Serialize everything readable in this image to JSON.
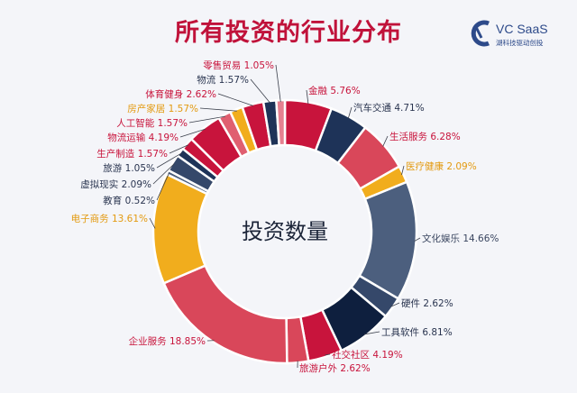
{
  "page": {
    "title": "所有投资的行业分布",
    "logo": {
      "name": "VC SaaS",
      "tagline": "湖科技驱动创投"
    }
  },
  "chart_data": {
    "type": "pie",
    "variant": "donut",
    "center_label": "投资数量",
    "slices": [
      {
        "label": "金融",
        "value": 5.76,
        "color": "#c8143c",
        "label_color": "#c8143c"
      },
      {
        "label": "汽车交通",
        "value": 4.71,
        "color": "#1e3358",
        "label_color": "#2a3550"
      },
      {
        "label": "生活服务",
        "value": 6.28,
        "color": "#d9475a",
        "label_color": "#c8143c"
      },
      {
        "label": "医疗健康",
        "value": 2.09,
        "color": "#f1ad1d",
        "label_color": "#e39a10"
      },
      {
        "label": "文化娱乐",
        "value": 14.66,
        "color": "#4c5f7e",
        "label_color": "#3a4660"
      },
      {
        "label": "硬件",
        "value": 2.62,
        "color": "#35486a",
        "label_color": "#2a3550"
      },
      {
        "label": "工具软件",
        "value": 6.81,
        "color": "#0e1f3e",
        "label_color": "#2a3550"
      },
      {
        "label": "社交社区",
        "value": 4.19,
        "color": "#c8143c",
        "label_color": "#c8143c"
      },
      {
        "label": "旅游户外",
        "value": 2.62,
        "color": "#d9475a",
        "label_color": "#c8143c"
      },
      {
        "label": "企业服务",
        "value": 18.85,
        "color": "#d9475a",
        "label_color": "#c8143c"
      },
      {
        "label": "电子商务",
        "value": 13.61,
        "color": "#f1ad1d",
        "label_color": "#e39a10"
      },
      {
        "label": "教育",
        "value": 0.52,
        "color": "#4c5f7e",
        "label_color": "#2a3550"
      },
      {
        "label": "虚拟现实",
        "value": 2.09,
        "color": "#35486a",
        "label_color": "#2a3550"
      },
      {
        "label": "旅游",
        "value": 1.05,
        "color": "#1e3358",
        "label_color": "#2a3550"
      },
      {
        "label": "生产制造",
        "value": 1.57,
        "color": "#c8143c",
        "label_color": "#c8143c"
      },
      {
        "label": "物流运输",
        "value": 4.19,
        "color": "#c8143c",
        "label_color": "#c8143c"
      },
      {
        "label": "人工智能",
        "value": 1.57,
        "color": "#e05f70",
        "label_color": "#c8143c"
      },
      {
        "label": "房产家居",
        "value": 1.57,
        "color": "#f1ad1d",
        "label_color": "#e39a10"
      },
      {
        "label": "体育健身",
        "value": 2.62,
        "color": "#c8143c",
        "label_color": "#c8143c"
      },
      {
        "label": "物流",
        "value": 1.57,
        "color": "#1e3358",
        "label_color": "#2a3550"
      },
      {
        "label": "零售贸易",
        "value": 1.05,
        "color": "#e58090",
        "label_color": "#c8143c"
      }
    ]
  }
}
